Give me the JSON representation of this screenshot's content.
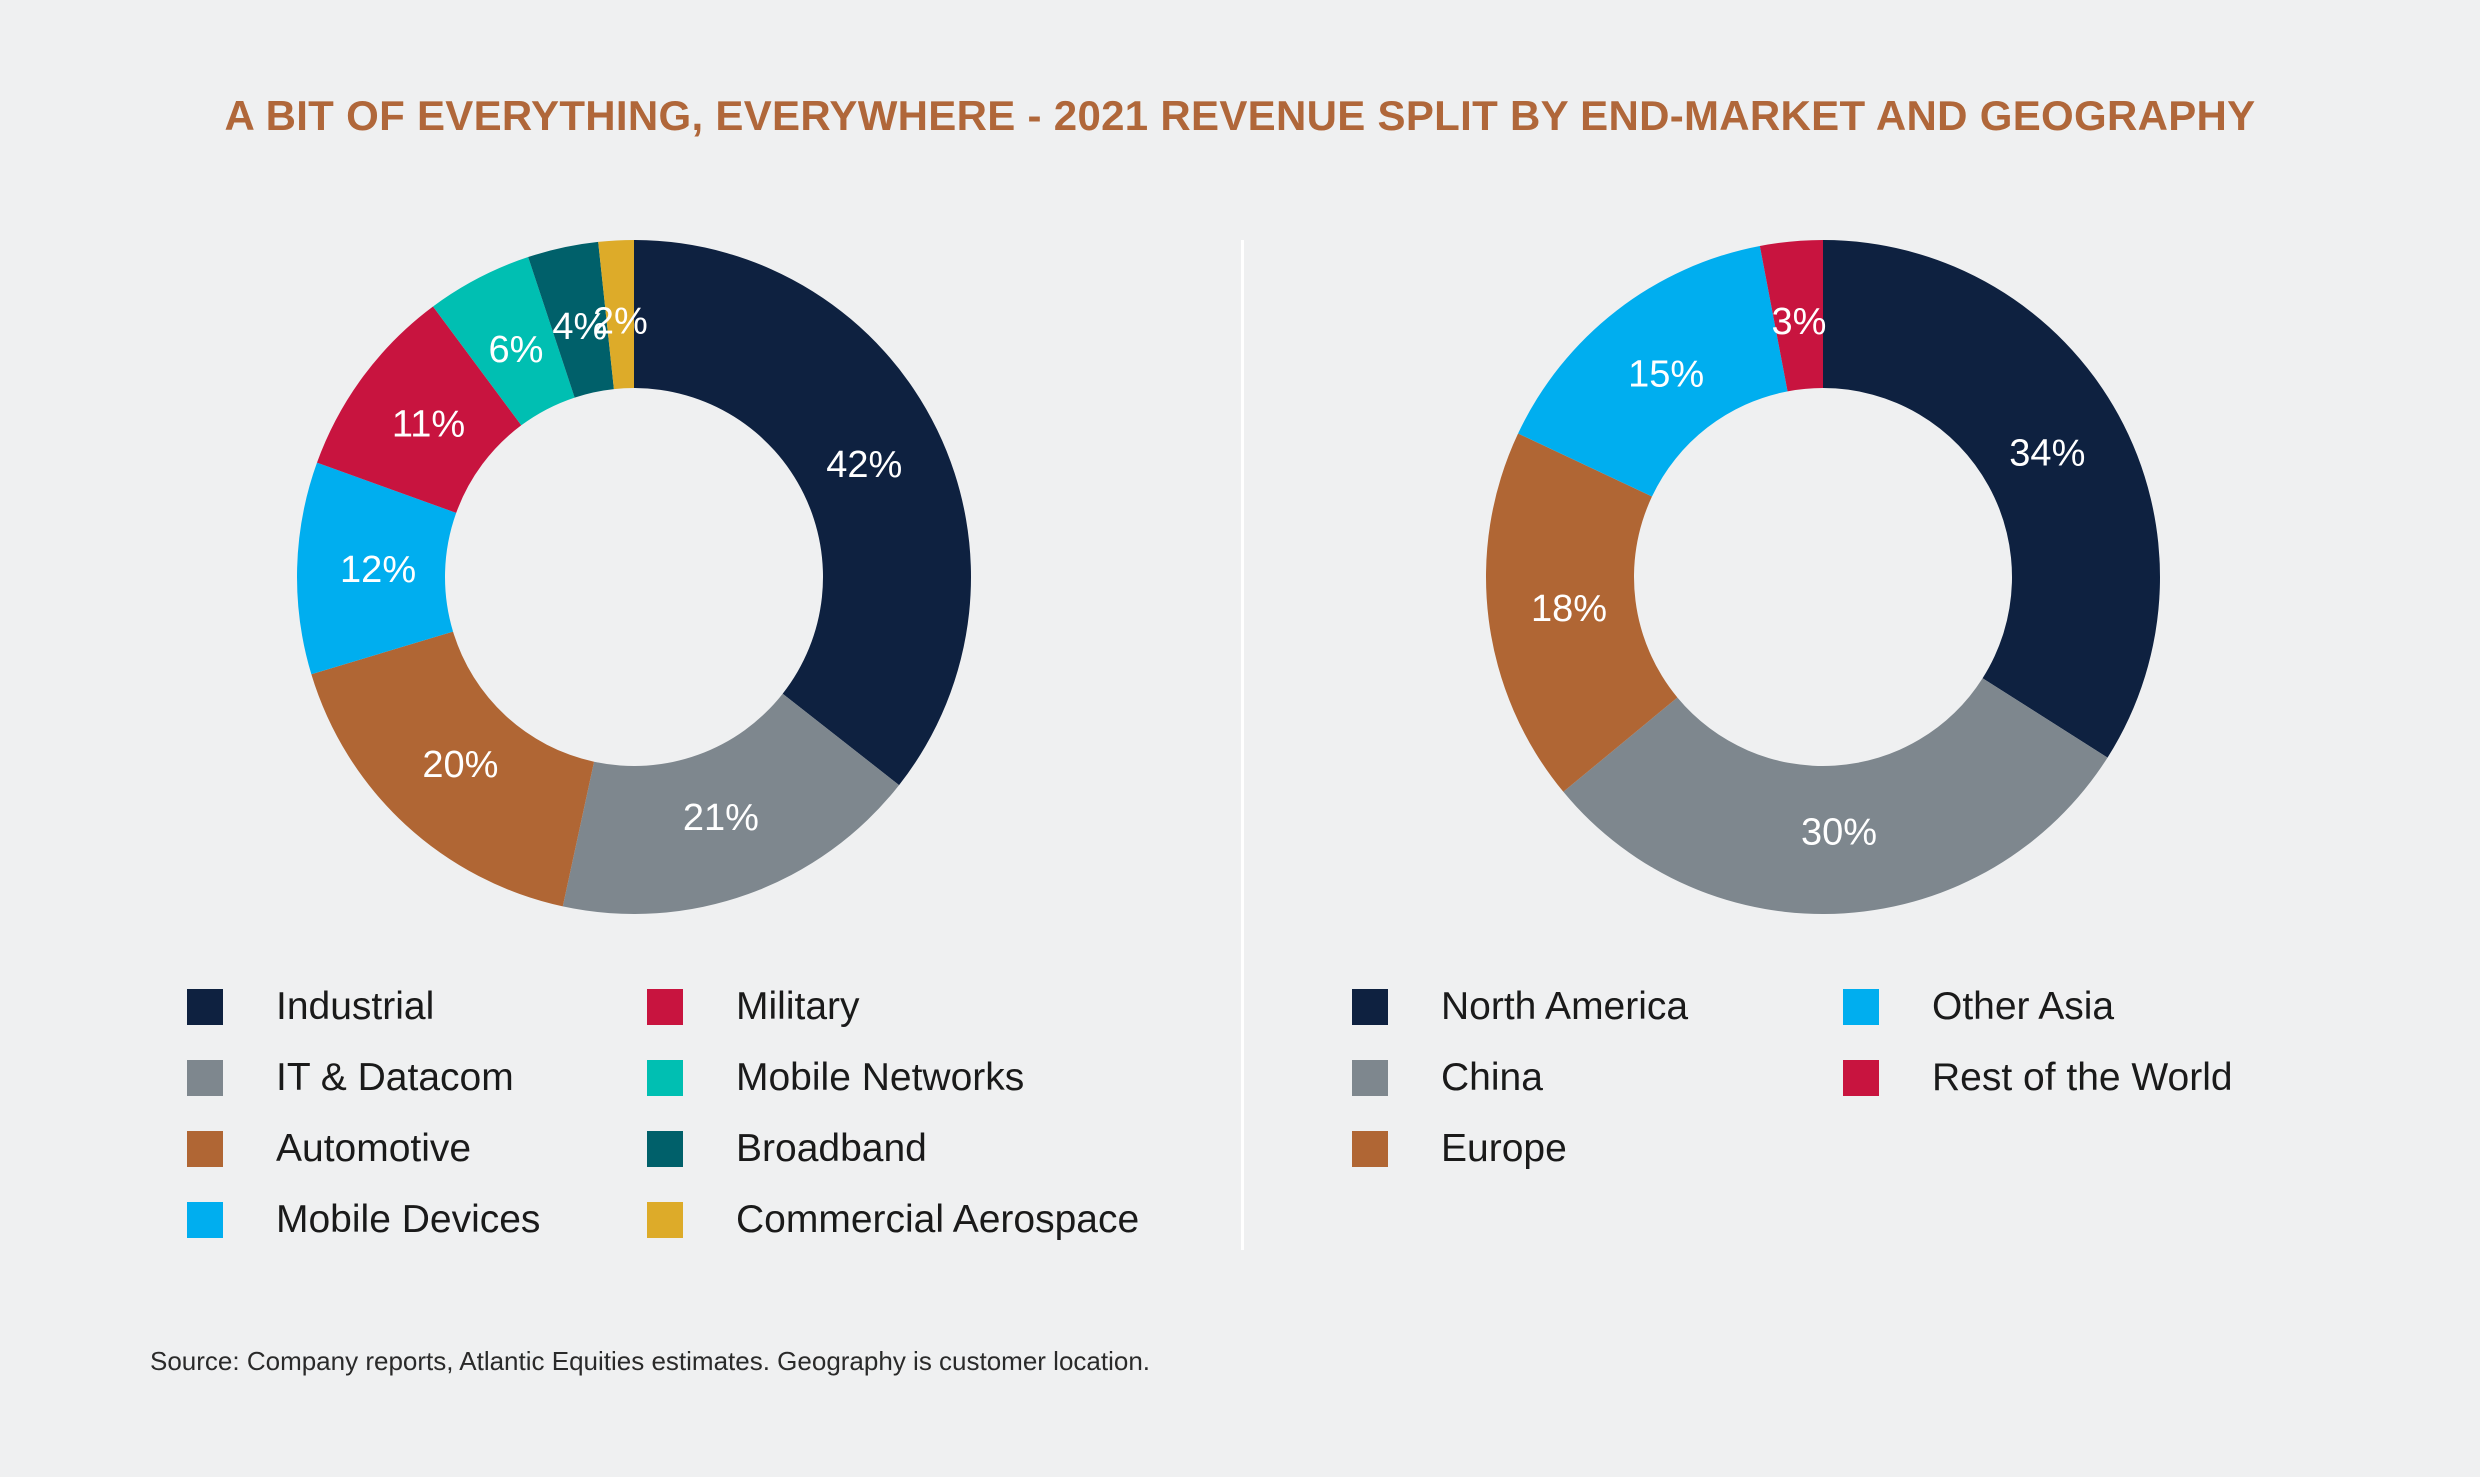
{
  "title": "A BIT OF EVERYTHING, EVERYWHERE - 2021 REVENUE SPLIT BY END-MARKET AND GEOGRAPHY",
  "source": "Source: Company reports, Atlantic Equities estimates. Geography is customer location.",
  "chart_data": [
    {
      "type": "pie",
      "subtype": "donut",
      "title": "2021 revenue split by end-market",
      "categories": [
        "Industrial",
        "IT & Datacom",
        "Automotive",
        "Mobile Devices",
        "Military",
        "Mobile Networks",
        "Broadband",
        "Commercial Aerospace"
      ],
      "values": [
        42,
        21,
        20,
        12,
        11,
        6,
        4,
        2
      ],
      "value_labels": [
        "42%",
        "21%",
        "20%",
        "12%",
        "11%",
        "6%",
        "4%",
        "2%"
      ],
      "colors": [
        "#0e2140",
        "#7e878e",
        "#b06634",
        "#00aeef",
        "#c8143f",
        "#00bfb2",
        "#00606a",
        "#ddab29"
      ],
      "legend": "bottom"
    },
    {
      "type": "pie",
      "subtype": "donut",
      "title": "2021 revenue split by geography",
      "categories": [
        "North America",
        "China",
        "Europe",
        "Other Asia",
        "Rest of the World"
      ],
      "values": [
        34,
        30,
        18,
        15,
        3
      ],
      "value_labels": [
        "34%",
        "30%",
        "18%",
        "15%",
        "3%"
      ],
      "colors": [
        "#0e2140",
        "#7e878e",
        "#b06634",
        "#00aeef",
        "#c8143f"
      ],
      "legend": "bottom"
    }
  ]
}
